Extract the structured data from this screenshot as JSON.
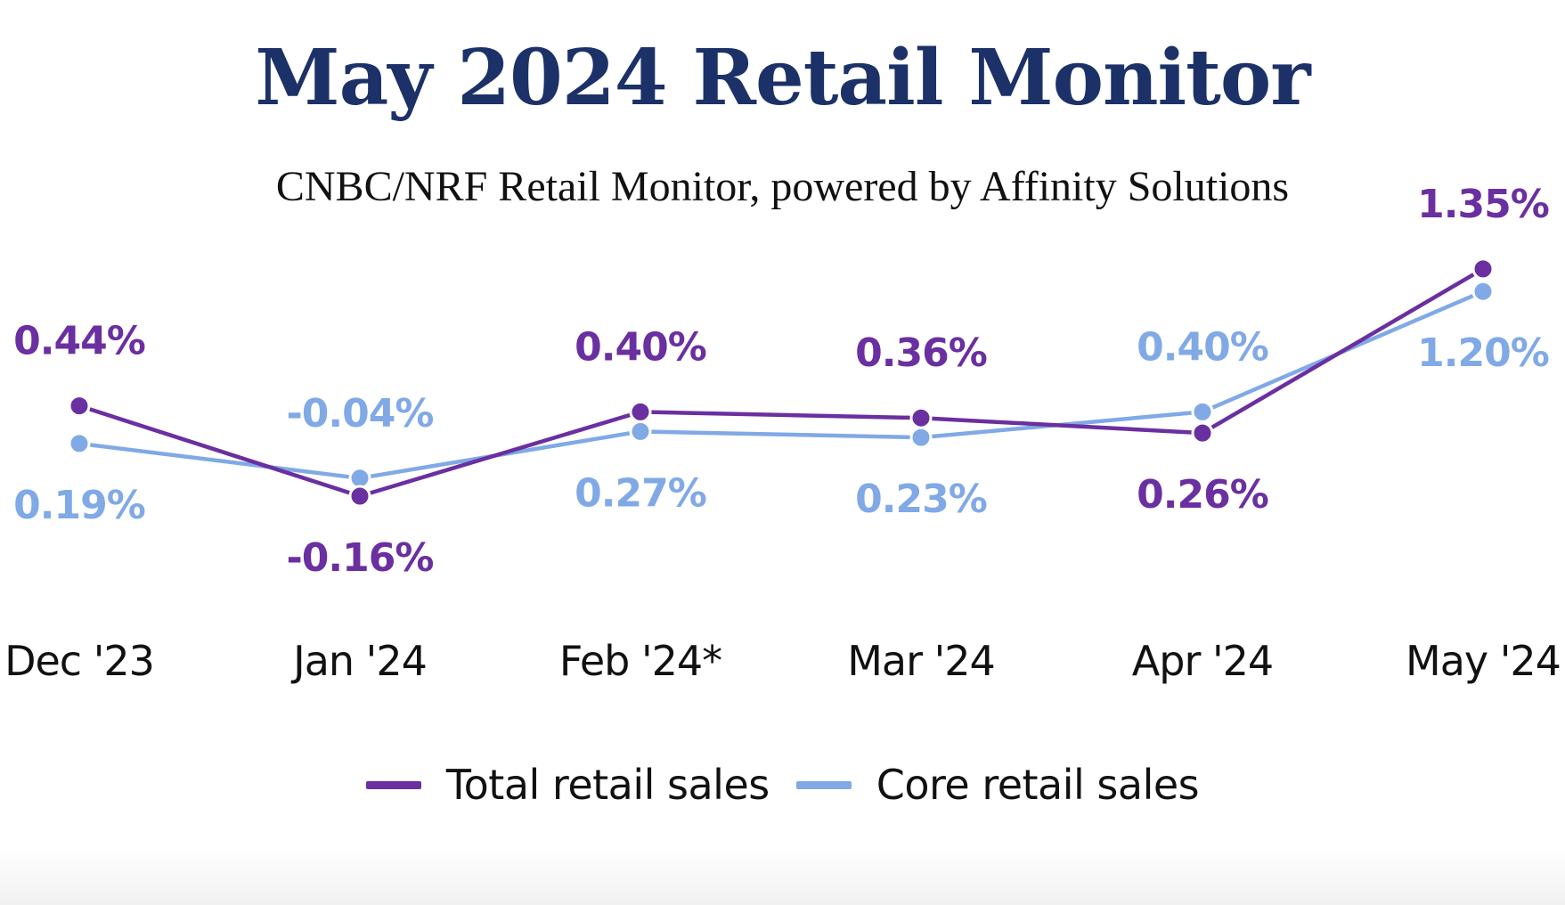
{
  "colors": {
    "title": "#1c3168",
    "total": "#6a2fa0",
    "core": "#80a9e6",
    "text": "#111111"
  },
  "chart_data": {
    "type": "line",
    "title": "May 2024 Retail Monitor",
    "subtitle": "CNBC/NRF Retail Monitor, powered by Affinity Solutions",
    "categories": [
      "Dec '23",
      "Jan '24",
      "Feb '24*",
      "Mar '24",
      "Apr '24",
      "May '24"
    ],
    "series": [
      {
        "name": "Total retail sales",
        "values": [
          0.44,
          -0.16,
          0.4,
          0.36,
          0.26,
          1.35
        ],
        "labels": [
          "0.44%",
          "-0.16%",
          "0.40%",
          "0.36%",
          "0.26%",
          "1.35%"
        ],
        "label_side": [
          "above",
          "below",
          "above",
          "above",
          "below",
          "above"
        ],
        "color": "#6a2fa0"
      },
      {
        "name": "Core retail sales",
        "values": [
          0.19,
          -0.04,
          0.27,
          0.23,
          0.4,
          1.2
        ],
        "labels": [
          "0.19%",
          "-0.04%",
          "0.27%",
          "0.23%",
          "0.40%",
          "1.20%"
        ],
        "label_side": [
          "below",
          "above",
          "below",
          "below",
          "above",
          "below"
        ],
        "color": "#80a9e6"
      }
    ],
    "xlabel": "",
    "ylabel": "",
    "grid": false,
    "legend": "bottom-center"
  }
}
